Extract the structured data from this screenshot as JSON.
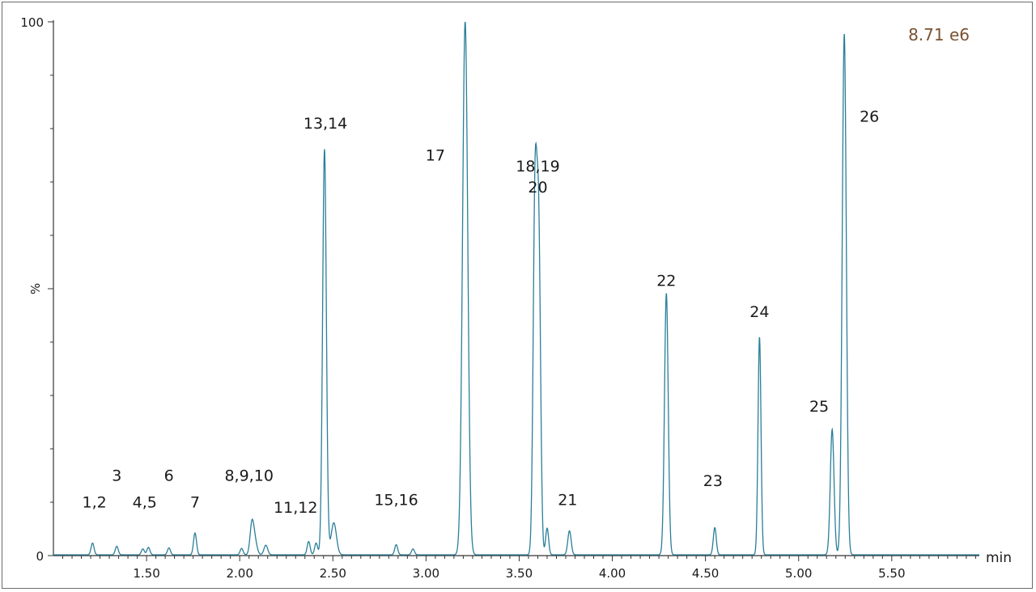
{
  "chart_data": {
    "type": "line",
    "title": "",
    "xlabel": "min",
    "ylabel": "%",
    "intensity_label": "8.71 e6",
    "xlim": [
      1.0,
      5.97
    ],
    "ylim": [
      0,
      100
    ],
    "x_ticks": [
      1.5,
      2.0,
      2.5,
      3.0,
      3.5,
      4.0,
      4.5,
      5.0,
      5.5
    ],
    "x_tick_labels": [
      "1.50",
      "2.00",
      "2.50",
      "3.00",
      "3.50",
      "4.00",
      "4.50",
      "5.00",
      "5.50"
    ],
    "y_ticks": [
      0,
      50,
      100
    ],
    "y_tick_labels": [
      "0",
      "%",
      "100"
    ],
    "grid": false,
    "colors": {
      "trace": "#2a7f99",
      "intensity": "#7a5230",
      "axis": "#333333"
    },
    "peaks": [
      {
        "rt": 1.21,
        "height": 2.2,
        "width": 0.008
      },
      {
        "rt": 1.34,
        "height": 1.6,
        "width": 0.008
      },
      {
        "rt": 1.48,
        "height": 1.1,
        "width": 0.008
      },
      {
        "rt": 1.51,
        "height": 1.4,
        "width": 0.008
      },
      {
        "rt": 1.62,
        "height": 1.3,
        "width": 0.008
      },
      {
        "rt": 1.76,
        "height": 4.1,
        "width": 0.008
      },
      {
        "rt": 2.01,
        "height": 1.2,
        "width": 0.008
      },
      {
        "rt": 2.065,
        "height": 5.2,
        "width": 0.01
      },
      {
        "rt": 2.08,
        "height": 2.8,
        "width": 0.012
      },
      {
        "rt": 2.14,
        "height": 1.8,
        "width": 0.01
      },
      {
        "rt": 2.37,
        "height": 2.5,
        "width": 0.008
      },
      {
        "rt": 2.41,
        "height": 2.2,
        "width": 0.008
      },
      {
        "rt": 2.455,
        "height": 76.0,
        "width": 0.01
      },
      {
        "rt": 2.505,
        "height": 6.0,
        "width": 0.014
      },
      {
        "rt": 2.84,
        "height": 1.9,
        "width": 0.008
      },
      {
        "rt": 2.93,
        "height": 1.1,
        "width": 0.008
      },
      {
        "rt": 3.21,
        "height": 100.0,
        "width": 0.014
      },
      {
        "rt": 3.585,
        "height": 66.0,
        "width": 0.01
      },
      {
        "rt": 3.605,
        "height": 58.0,
        "width": 0.01
      },
      {
        "rt": 3.65,
        "height": 5.0,
        "width": 0.008
      },
      {
        "rt": 3.77,
        "height": 4.5,
        "width": 0.009
      },
      {
        "rt": 4.29,
        "height": 49.0,
        "width": 0.01
      },
      {
        "rt": 4.55,
        "height": 5.1,
        "width": 0.008
      },
      {
        "rt": 4.79,
        "height": 40.8,
        "width": 0.008
      },
      {
        "rt": 5.18,
        "height": 23.5,
        "width": 0.01
      },
      {
        "rt": 5.245,
        "height": 97.6,
        "width": 0.011
      }
    ],
    "annotations": [
      {
        "text": "1,2",
        "x": 1.22,
        "y": 9.0
      },
      {
        "text": "3",
        "x": 1.34,
        "y": 14.0
      },
      {
        "text": "4,5",
        "x": 1.49,
        "y": 9.0
      },
      {
        "text": "6",
        "x": 1.62,
        "y": 14.0
      },
      {
        "text": "7",
        "x": 1.76,
        "y": 9.0
      },
      {
        "text": "8,9,10",
        "x": 2.05,
        "y": 14.0
      },
      {
        "text": "11,12",
        "x": 2.3,
        "y": 8.0
      },
      {
        "text": "13,14",
        "x": 2.46,
        "y": 80.0
      },
      {
        "text": "15,16",
        "x": 2.84,
        "y": 9.5
      },
      {
        "text": "17",
        "x": 3.05,
        "y": 74.0
      },
      {
        "text": "18,19",
        "x": 3.6,
        "y": 72.0
      },
      {
        "text": "20",
        "x": 3.6,
        "y": 68.0
      },
      {
        "text": "21",
        "x": 3.76,
        "y": 9.5
      },
      {
        "text": "22",
        "x": 4.29,
        "y": 50.5
      },
      {
        "text": "23",
        "x": 4.54,
        "y": 13.0
      },
      {
        "text": "24",
        "x": 4.79,
        "y": 44.7
      },
      {
        "text": "25",
        "x": 5.11,
        "y": 27.0
      },
      {
        "text": "26",
        "x": 5.38,
        "y": 81.3
      }
    ]
  }
}
